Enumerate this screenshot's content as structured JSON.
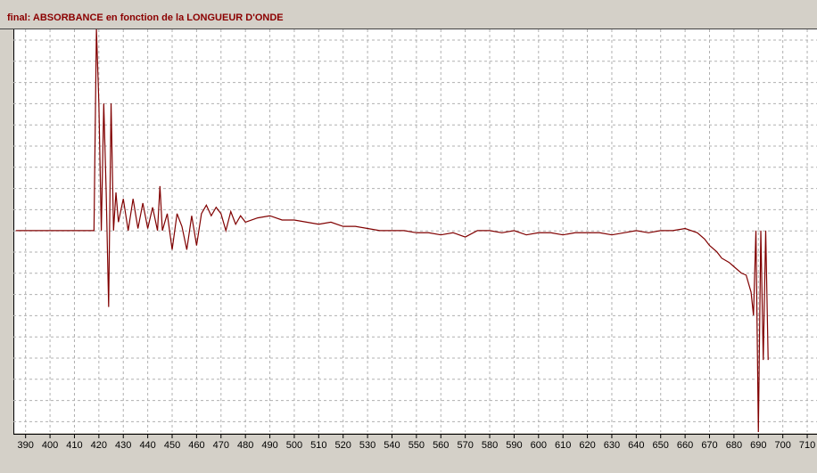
{
  "chart_data": {
    "type": "line",
    "title": "final: ABSORBANCE en fonction de la LONGUEUR D'ONDE",
    "x": [
      386,
      418,
      419,
      420,
      421,
      422,
      423,
      424,
      425,
      426,
      427,
      428,
      430,
      432,
      434,
      436,
      438,
      440,
      442,
      444,
      445,
      446,
      448,
      450,
      452,
      454,
      456,
      458,
      460,
      462,
      464,
      466,
      468,
      470,
      472,
      474,
      476,
      478,
      480,
      485,
      490,
      495,
      500,
      505,
      510,
      515,
      520,
      525,
      530,
      535,
      540,
      545,
      550,
      555,
      560,
      565,
      570,
      575,
      580,
      585,
      590,
      595,
      600,
      605,
      610,
      615,
      620,
      625,
      630,
      635,
      640,
      645,
      650,
      655,
      660,
      665,
      668,
      670,
      673,
      675,
      678,
      680,
      683,
      685,
      687,
      688,
      689,
      690,
      691,
      692,
      693,
      694
    ],
    "series": [
      {
        "name": "final",
        "color": "#800000",
        "values": [
          9.5,
          9.5,
          19,
          15.5,
          9.5,
          15.5,
          11.3,
          5.9,
          15.5,
          9.5,
          11.3,
          9.9,
          11.0,
          9.5,
          11.0,
          9.6,
          10.8,
          9.6,
          10.6,
          9.5,
          11.6,
          9.5,
          10.3,
          8.6,
          10.3,
          9.7,
          8.6,
          10.2,
          8.8,
          10.3,
          10.7,
          10.2,
          10.6,
          10.3,
          9.5,
          10.4,
          9.8,
          10.2,
          9.9,
          10.1,
          10.2,
          10.0,
          10.0,
          9.9,
          9.8,
          9.9,
          9.7,
          9.7,
          9.6,
          9.5,
          9.5,
          9.5,
          9.4,
          9.4,
          9.3,
          9.4,
          9.2,
          9.5,
          9.5,
          9.4,
          9.5,
          9.3,
          9.4,
          9.4,
          9.3,
          9.4,
          9.4,
          9.4,
          9.3,
          9.4,
          9.5,
          9.4,
          9.5,
          9.5,
          9.6,
          9.4,
          9.1,
          8.8,
          8.5,
          8.2,
          8.0,
          7.8,
          7.5,
          7.4,
          6.6,
          5.5,
          9.5,
          0,
          9.5,
          3.4,
          9.5,
          3.4
        ]
      }
    ],
    "xlim": [
      385,
      714
    ],
    "xticks": [
      390,
      400,
      410,
      420,
      430,
      440,
      450,
      460,
      470,
      480,
      490,
      500,
      510,
      520,
      530,
      540,
      550,
      560,
      570,
      580,
      590,
      600,
      610,
      620,
      630,
      640,
      650,
      660,
      670,
      680,
      690,
      700,
      710
    ],
    "ylim": [
      0,
      19
    ],
    "grid": true
  }
}
